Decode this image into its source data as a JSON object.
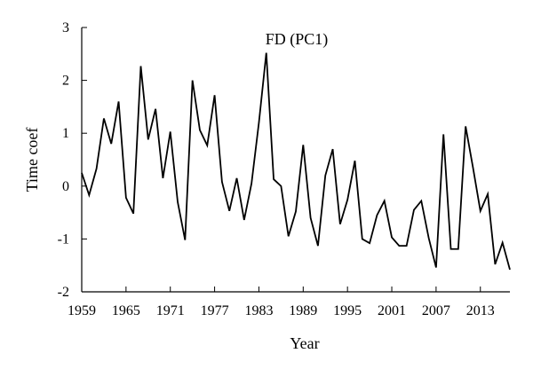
{
  "chart_data": {
    "type": "line",
    "title": "FD (PC1)",
    "xlabel": "Year",
    "ylabel": "Time coef",
    "xlim": [
      1959,
      2017
    ],
    "ylim": [
      -2,
      3
    ],
    "x_ticks": [
      1959,
      1965,
      1971,
      1977,
      1983,
      1989,
      1995,
      2001,
      2007,
      2013
    ],
    "x_tick_labels": [
      "1959",
      "1965",
      "1971",
      "1977",
      "1983",
      "1989",
      "1995",
      "2001",
      "2007",
      "2013"
    ],
    "y_ticks": [
      -2,
      -1,
      0,
      1,
      2,
      3
    ],
    "y_tick_labels": [
      "-2",
      "-1",
      "0",
      "1",
      "2",
      "3"
    ],
    "grid": false,
    "legend": "none",
    "line_color": "#000000",
    "series": [
      {
        "x": [
          1959,
          1960,
          1961,
          1962,
          1963,
          1964,
          1965,
          1966,
          1967,
          1968,
          1969,
          1970,
          1971,
          1972,
          1973,
          1974,
          1975,
          1976,
          1977,
          1978,
          1979,
          1980,
          1981,
          1982,
          1983,
          1984,
          1985,
          1986,
          1987,
          1988,
          1989,
          1990,
          1991,
          1992,
          1993,
          1994,
          1995,
          1996,
          1997,
          1998,
          1999,
          2000,
          2001,
          2002,
          2003,
          2004,
          2005,
          2006,
          2007,
          2008,
          2009,
          2010,
          2011,
          2012,
          2013,
          2014,
          2015,
          2016,
          2017
        ],
        "values": [
          0.25,
          -0.17,
          0.33,
          1.28,
          0.8,
          1.6,
          -0.22,
          -0.52,
          2.27,
          0.88,
          1.46,
          0.15,
          1.03,
          -0.3,
          -1.02,
          2.0,
          1.06,
          0.77,
          1.72,
          0.08,
          -0.47,
          0.15,
          -0.64,
          0.05,
          1.2,
          2.52,
          0.13,
          0.0,
          -0.95,
          -0.48,
          0.78,
          -0.6,
          -1.13,
          0.2,
          0.7,
          -0.72,
          -0.26,
          0.48,
          -1.0,
          -1.08,
          -0.55,
          -0.28,
          -0.97,
          -1.13,
          -1.13,
          -0.45,
          -0.28,
          -0.98,
          -1.54,
          0.98,
          -1.19,
          -1.19,
          1.13,
          0.35,
          -0.47,
          -0.15,
          -1.48,
          -1.07,
          -1.58
        ]
      }
    ]
  }
}
